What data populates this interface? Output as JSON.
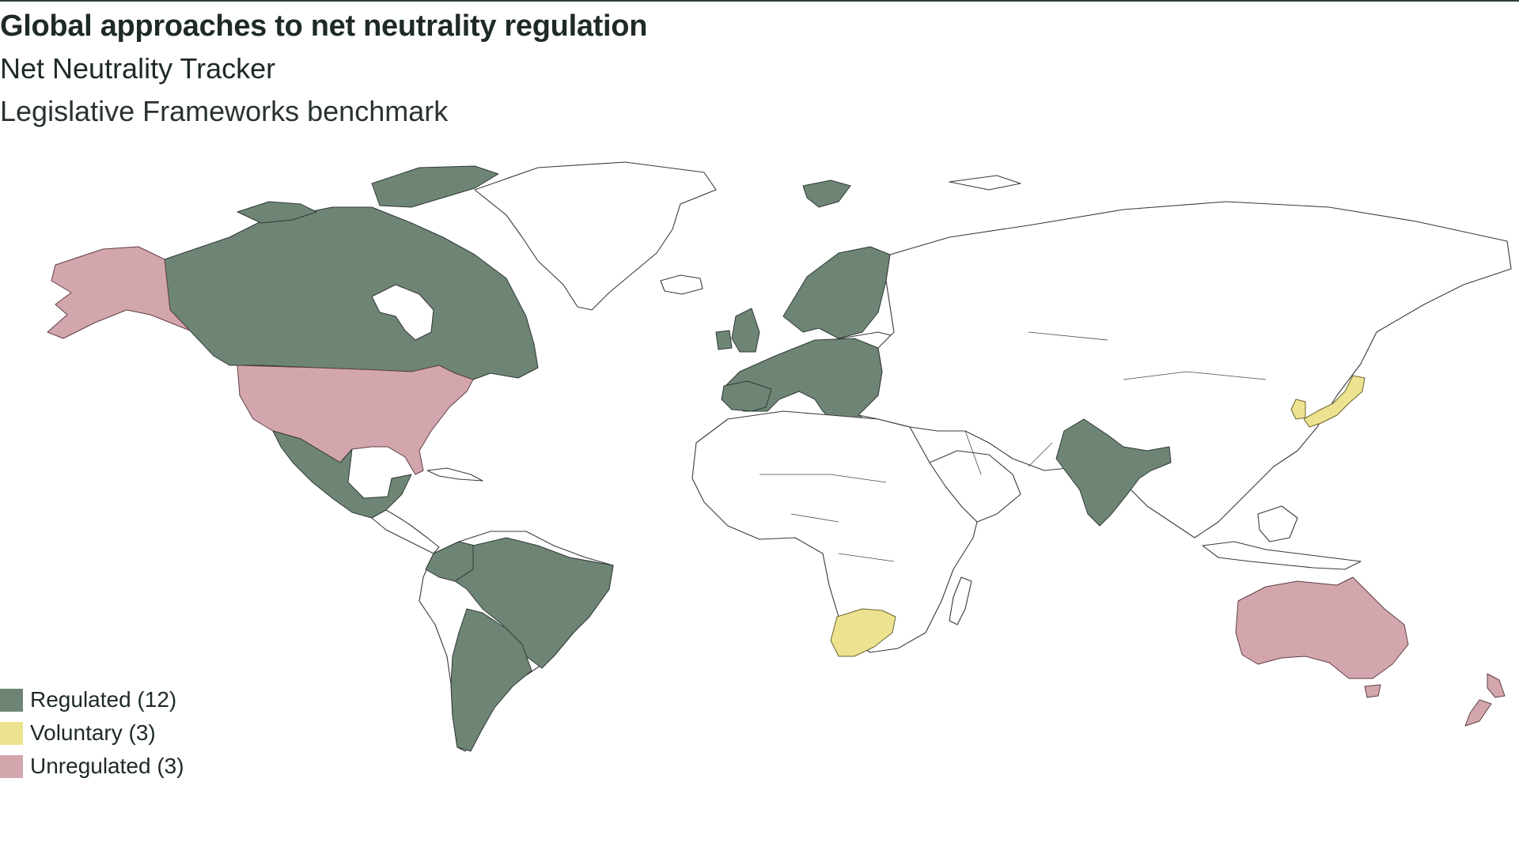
{
  "header": {
    "title": "Global approaches to net neutrality regulation",
    "subtitle": "Net Neutrality Tracker",
    "benchmark": "Legislative Frameworks benchmark"
  },
  "colors": {
    "regulated": "#6e8576",
    "voluntary": "#ede28f",
    "unregulated": "#d3a6ad"
  },
  "legend": {
    "items": [
      {
        "label": "Regulated (12)",
        "color": "#6e8576"
      },
      {
        "label": "Voluntary (3)",
        "color": "#ede28f"
      },
      {
        "label": "Unregulated (3)",
        "color": "#d3a6ad"
      }
    ]
  }
}
